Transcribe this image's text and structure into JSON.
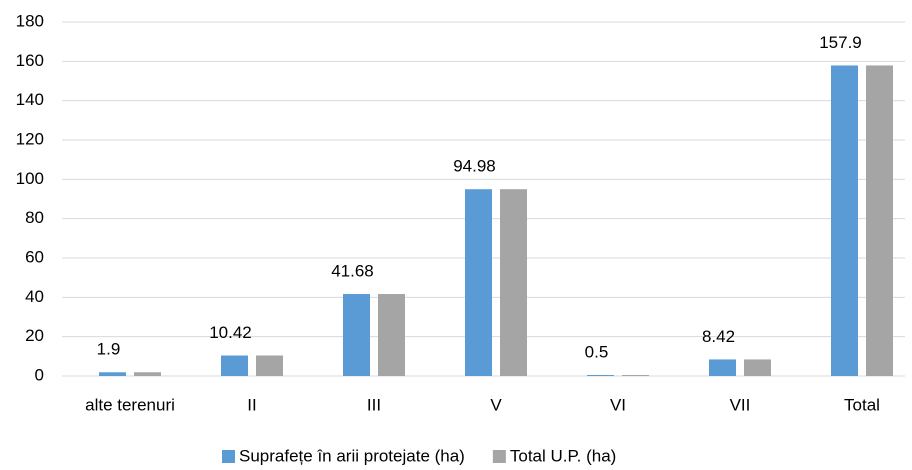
{
  "chart_data": {
    "type": "bar",
    "categories": [
      "alte terenuri",
      "II",
      "III",
      "V",
      "VI",
      "VII",
      "Total"
    ],
    "series": [
      {
        "name": "Suprafețe în arii protejate (ha)",
        "color": "#5b9bd5",
        "values": [
          1.9,
          10.42,
          41.68,
          94.98,
          0.5,
          8.42,
          157.9
        ]
      },
      {
        "name": "Total U.P. (ha)",
        "color": "#a5a5a5",
        "values": [
          1.9,
          10.42,
          41.68,
          94.98,
          0.5,
          8.42,
          157.9
        ]
      }
    ],
    "ylim": [
      0,
      180
    ],
    "yticks": [
      0,
      20,
      40,
      60,
      80,
      100,
      120,
      140,
      160,
      180
    ],
    "grid": true,
    "legend": "bottom"
  }
}
